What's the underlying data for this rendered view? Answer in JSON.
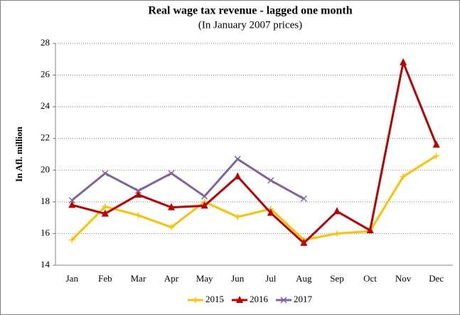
{
  "chart_data": {
    "type": "line",
    "title": "Real wage tax revenue - lagged one month",
    "subtitle": "(In January 2007 prices)",
    "y_label": "In Afl. million",
    "categories": [
      "Jan",
      "Feb",
      "Mar",
      "Apr",
      "May",
      "Jun",
      "Jul",
      "Aug",
      "Sep",
      "Oct",
      "Nov",
      "Dec"
    ],
    "series": [
      {
        "name": "2015",
        "color": "#ffc000",
        "marker": "plus",
        "values": [
          15.6,
          17.7,
          17.15,
          16.4,
          18.0,
          17.05,
          17.55,
          15.6,
          16.0,
          16.15,
          19.6,
          20.9
        ]
      },
      {
        "name": "2016",
        "color": "#c00000",
        "marker": "triangle",
        "values": [
          17.8,
          17.25,
          18.45,
          17.65,
          17.75,
          19.6,
          17.3,
          15.4,
          17.4,
          16.2,
          26.8,
          21.6
        ]
      },
      {
        "name": "2017",
        "color": "#8064a2",
        "marker": "x",
        "values": [
          18.1,
          19.8,
          18.7,
          19.8,
          18.35,
          20.7,
          19.35,
          18.2,
          null,
          null,
          null,
          null
        ]
      }
    ],
    "ylim": [
      14,
      28
    ],
    "yticks": [
      14,
      16,
      18,
      20,
      22,
      24,
      26,
      28
    ],
    "grid": true,
    "legend": "bottom"
  }
}
